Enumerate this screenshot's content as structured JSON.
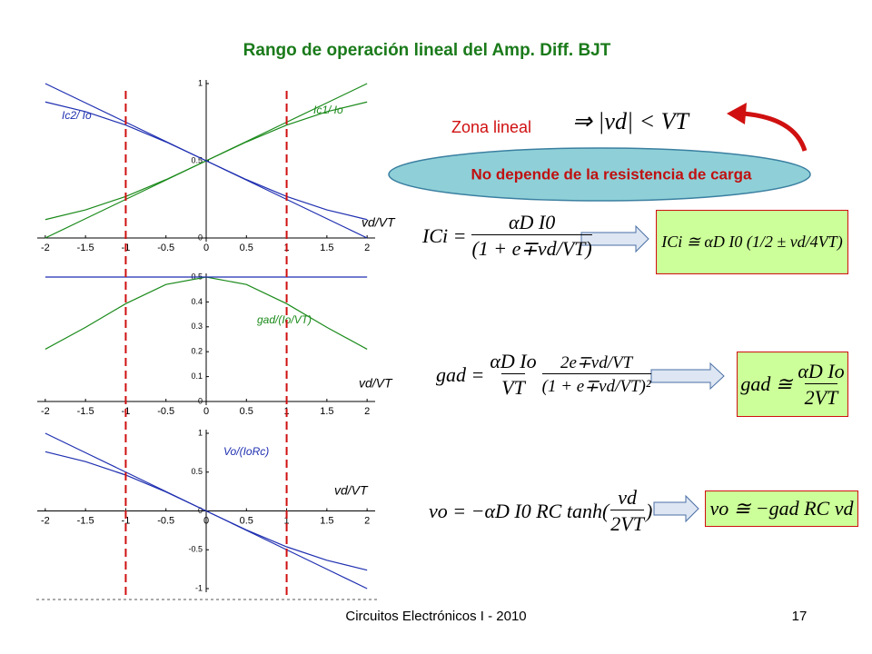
{
  "title": "Rango de operación lineal del Amp. Diff. BJT",
  "zone": {
    "label": "Zona lineal",
    "condition": "⇒ |vd| < VT"
  },
  "note": "No depende de la resistencia de carga",
  "equations": [
    {
      "lhs": "ICi =",
      "num": "αD I0",
      "den": "(1 + e∓vd/VT)",
      "result": "ICi ≅ αD I0 (1/2 ± vd/4VT)"
    },
    {
      "lhs": "gad =",
      "num": "αD Io",
      "den": "VT",
      "num2": "2e∓vd/VT",
      "den2": "(1 + e∓vd/VT)²",
      "result_lhs": "gad ≅",
      "result_num": "αD Io",
      "result_den": "2VT"
    },
    {
      "lhs": "vo = −αD I0 RC tanh(",
      "num": "vd",
      "den": "2VT",
      "rhs": ")",
      "result": "vo ≅ −gad RC vd"
    }
  ],
  "footer": {
    "course": "Circuitos Electrónicos I - 2010",
    "page": "17"
  },
  "highlight_x": [
    -1,
    1
  ],
  "chart_data": [
    {
      "type": "line",
      "annotations": [
        "Ic2/ Io",
        "Ic1/ Io"
      ],
      "xlabel": "vd/VT",
      "x": [
        -2,
        -1.5,
        -1,
        -0.5,
        0,
        0.5,
        1,
        1.5,
        2
      ],
      "series": [
        {
          "color": "#1a8a1a",
          "values": [
            0.119,
            0.182,
            0.269,
            0.378,
            0.5,
            0.622,
            0.731,
            0.818,
            0.881
          ]
        },
        {
          "color": "#1a8a1a",
          "values": [
            0,
            0.125,
            0.25,
            0.375,
            0.5,
            0.625,
            0.75,
            0.875,
            1
          ]
        },
        {
          "color": "#1f2fb0",
          "values": [
            0.881,
            0.818,
            0.731,
            0.622,
            0.5,
            0.378,
            0.269,
            0.182,
            0.119
          ]
        },
        {
          "color": "#1f2fb0",
          "values": [
            1,
            0.875,
            0.75,
            0.625,
            0.5,
            0.375,
            0.25,
            0.125,
            0
          ]
        }
      ],
      "xlim": [
        -2.1,
        2.1
      ],
      "ylim": [
        0,
        1
      ],
      "xticks": [
        -2,
        -1.5,
        -1,
        -0.5,
        0,
        0.5,
        1,
        1.5,
        2
      ],
      "yticks": [
        0,
        0.5,
        1
      ]
    },
    {
      "type": "line",
      "annotations": [
        "gad/(Io/VT)"
      ],
      "xlabel": "vd/VT",
      "x": [
        -2,
        -1.5,
        -1,
        -0.5,
        0,
        0.5,
        1,
        1.5,
        2
      ],
      "series": [
        {
          "color": "#1a8a1a",
          "values": [
            0.21,
            0.298,
            0.393,
            0.47,
            0.5,
            0.47,
            0.393,
            0.298,
            0.21
          ]
        },
        {
          "color": "#1f2fb0",
          "values": [
            0.5,
            0.5,
            0.5,
            0.5,
            0.5,
            0.5,
            0.5,
            0.5,
            0.5
          ]
        }
      ],
      "xlim": [
        -2.1,
        2.1
      ],
      "ylim": [
        0,
        0.5
      ],
      "xticks": [
        -2,
        -1.5,
        -1,
        -0.5,
        0,
        0.5,
        1,
        1.5,
        2
      ],
      "yticks": [
        0,
        0.1,
        0.2,
        0.3,
        0.4,
        0.5
      ]
    },
    {
      "type": "line",
      "annotations": [
        "Vo/(IoRc)"
      ],
      "xlabel": "vd/VT",
      "x": [
        -2,
        -1.5,
        -1,
        -0.5,
        0,
        0.5,
        1,
        1.5,
        2
      ],
      "series": [
        {
          "color": "#1f2fb0",
          "values": [
            0.762,
            0.635,
            0.462,
            0.245,
            0,
            -0.245,
            -0.462,
            -0.635,
            -0.762
          ]
        },
        {
          "color": "#1f2fb0",
          "values": [
            1,
            0.75,
            0.5,
            0.25,
            0,
            -0.25,
            -0.5,
            -0.75,
            -1
          ]
        }
      ],
      "xlim": [
        -2.1,
        2.1
      ],
      "ylim": [
        -1,
        1
      ],
      "xticks": [
        -2,
        -1.5,
        -1,
        -0.5,
        0,
        0.5,
        1,
        1.5,
        2
      ],
      "yticks": [
        -1,
        -0.5,
        0,
        0.5,
        1
      ]
    }
  ]
}
